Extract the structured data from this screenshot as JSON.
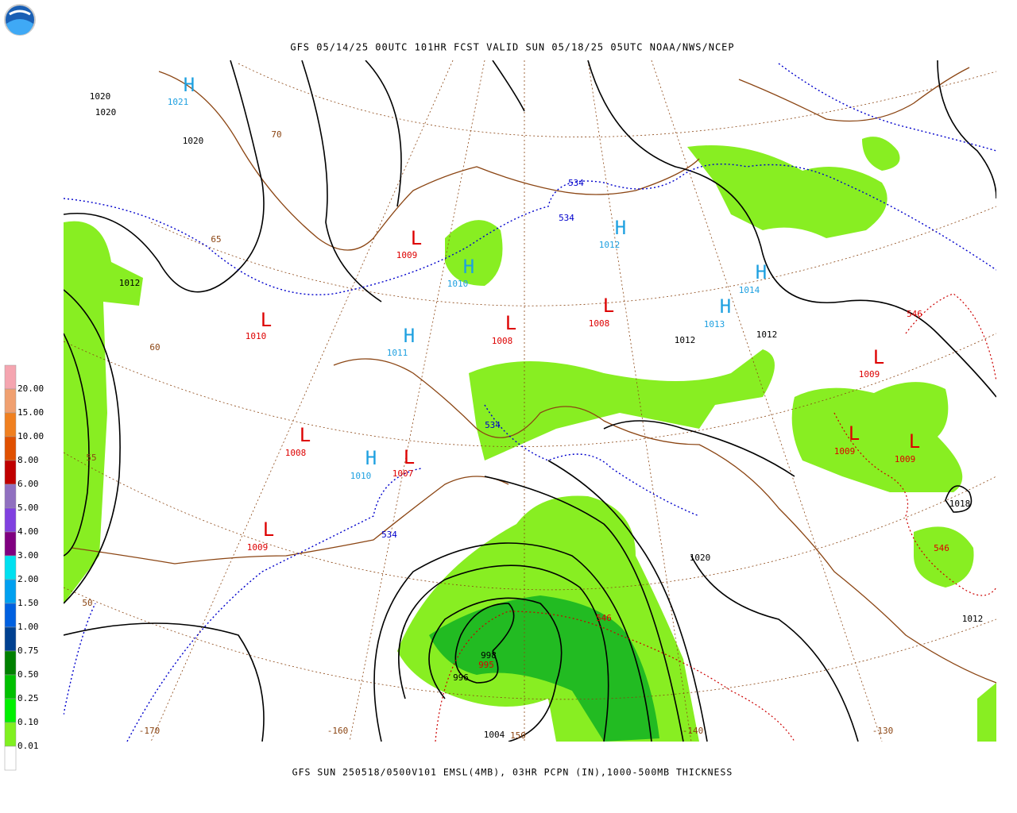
{
  "header": {
    "title": "GFS 05/14/25 00UTC 101HR FCST VALID SUN 05/18/25 05UTC NOAA/NWS/NCEP"
  },
  "legend": {
    "labels": [
      "20.00",
      "15.00",
      "10.00",
      "8.00",
      "6.00",
      "5.00",
      "4.00",
      "3.00",
      "2.00",
      "1.50",
      "1.00",
      "0.75",
      "0.50",
      "0.25",
      "0.10",
      "0.01"
    ]
  },
  "map": {
    "labels": [
      "H",
      "1021",
      "1020",
      "1020",
      "1020",
      "70",
      "65",
      "60",
      "55",
      "50",
      "L",
      "1009",
      "H",
      "1010",
      "534",
      "534",
      "H",
      "1012",
      "1012",
      "L",
      "1010",
      "H",
      "1011",
      "L",
      "1008",
      "L",
      "1008",
      "H",
      "1014",
      "H",
      "1013",
      "1012",
      "1012",
      "546",
      "L",
      "1009",
      "534",
      "L",
      "1009",
      "L",
      "1009",
      "L",
      "1008",
      "H",
      "1010",
      "L",
      "1007",
      "1018",
      "L",
      "1009",
      "534",
      "1020",
      "546",
      "546",
      "998",
      "995",
      "996",
      "1012",
      "-170",
      "-160",
      "1004",
      "150",
      "-140",
      "-130"
    ]
  },
  "footer": {
    "caption": "GFS SUN 250518/0500V101 EMSL(4MB), 03HR PCPN (IN),1000-500MB THICKNESS"
  }
}
